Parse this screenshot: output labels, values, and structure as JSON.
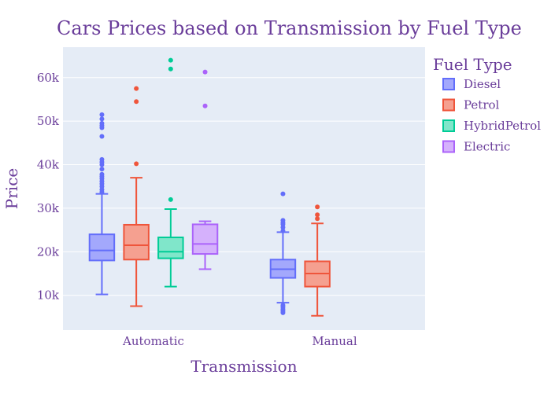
{
  "chart_data": {
    "type": "box",
    "title": "Cars Prices based on Transmission by Fuel Type",
    "xlabel": "Transmission",
    "ylabel": "Price",
    "categories": [
      "Automatic",
      "Manual"
    ],
    "ylim": [
      2000,
      67000
    ],
    "yticks": [
      10000,
      20000,
      30000,
      40000,
      50000,
      60000
    ],
    "ytick_labels": [
      "10k",
      "20k",
      "30k",
      "40k",
      "50k",
      "60k"
    ],
    "grid": true,
    "legend": {
      "title": "Fuel Type",
      "placement": "right"
    },
    "series": [
      {
        "name": "Diesel",
        "color": "#636efa",
        "fill": "#a3a8fc",
        "boxes": [
          {
            "category": "Automatic",
            "min": 10200,
            "q1": 18000,
            "median": 20300,
            "q3": 24000,
            "max": 33300,
            "outliers": [
              33700,
              34300,
              35000,
              35600,
              36200,
              36800,
              37300,
              37800,
              39000,
              40000,
              40600,
              41200,
              46500,
              48500,
              49000,
              49500,
              50500,
              51500
            ]
          },
          {
            "category": "Manual",
            "min": 8300,
            "q1": 14000,
            "median": 16000,
            "q3": 18200,
            "max": 24500,
            "outliers": [
              6000,
              6400,
              6800,
              7300,
              7700,
              24800,
              25600,
              26300,
              26700,
              27200,
              33300
            ]
          }
        ]
      },
      {
        "name": "Petrol",
        "color": "#ef553b",
        "fill": "#f5a090",
        "boxes": [
          {
            "category": "Automatic",
            "min": 7500,
            "q1": 18200,
            "median": 21500,
            "q3": 26200,
            "max": 37000,
            "outliers": [
              40200,
              54500,
              57500
            ]
          },
          {
            "category": "Manual",
            "min": 5300,
            "q1": 12000,
            "median": 15000,
            "q3": 17800,
            "max": 26500,
            "outliers": [
              27600,
              28500,
              30300
            ]
          }
        ]
      },
      {
        "name": "HybridPetrol",
        "color": "#00cc96",
        "fill": "#80e6ca",
        "boxes": [
          {
            "category": "Automatic",
            "min": 12000,
            "q1": 18500,
            "median": 20000,
            "q3": 23300,
            "max": 29800,
            "outliers": [
              32000,
              62000,
              64000
            ]
          }
        ]
      },
      {
        "name": "Electric",
        "color": "#ab63fa",
        "fill": "#d5b1fc",
        "boxes": [
          {
            "category": "Automatic",
            "min": 16000,
            "q1": 19500,
            "median": 21800,
            "q3": 26300,
            "max": 27000,
            "outliers": [
              53500,
              61300
            ]
          }
        ]
      }
    ]
  }
}
